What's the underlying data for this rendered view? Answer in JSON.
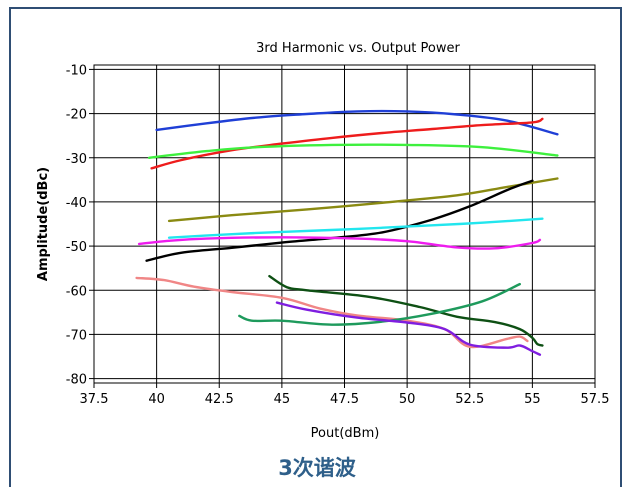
{
  "caption": "3次谐波",
  "chart_data": {
    "type": "line",
    "title": "3rd Harmonic  vs. Output Power",
    "xlabel": "Pout(dBm)",
    "ylabel": "Amplitude(dBc)",
    "xlim": [
      37.5,
      57.5
    ],
    "ylim": [
      -81,
      -9
    ],
    "xticks": [
      37.5,
      40,
      42.5,
      45,
      47.5,
      50,
      52.5,
      55,
      57.5
    ],
    "xtick_labels": [
      "37.5",
      "40",
      "42.5",
      "45",
      "47.5",
      "50",
      "52.5",
      "55",
      "57.5"
    ],
    "yticks": [
      -10,
      -20,
      -30,
      -40,
      -50,
      -60,
      -70,
      -80
    ],
    "ytick_labels": [
      "-10",
      "-20",
      "-30",
      "-40",
      "-50",
      "-60",
      "-70",
      "-80"
    ],
    "grid": true,
    "series": [
      {
        "color": "#1f3fd6",
        "points": [
          [
            40,
            -23.7
          ],
          [
            42,
            -22.2
          ],
          [
            44,
            -20.9
          ],
          [
            46,
            -20.1
          ],
          [
            48,
            -19.5
          ],
          [
            50,
            -19.5
          ],
          [
            52,
            -20.2
          ],
          [
            54,
            -21.6
          ],
          [
            56,
            -24.7
          ]
        ]
      },
      {
        "color": "#ee1c1c",
        "points": [
          [
            39.8,
            -32.4
          ],
          [
            41,
            -30.5
          ],
          [
            43,
            -28.3
          ],
          [
            45,
            -26.8
          ],
          [
            47,
            -25.5
          ],
          [
            49,
            -24.4
          ],
          [
            51,
            -23.5
          ],
          [
            53,
            -22.6
          ],
          [
            55,
            -22.0
          ],
          [
            55.4,
            -21.2
          ]
        ]
      },
      {
        "color": "#3ef03e",
        "points": [
          [
            39.7,
            -30.0
          ],
          [
            42,
            -28.5
          ],
          [
            44,
            -27.6
          ],
          [
            47,
            -27.1
          ],
          [
            50,
            -27.1
          ],
          [
            53,
            -27.6
          ],
          [
            56,
            -29.5
          ]
        ]
      },
      {
        "color": "#8a8a12",
        "points": [
          [
            40.5,
            -44.3
          ],
          [
            43,
            -43.0
          ],
          [
            46,
            -41.7
          ],
          [
            49,
            -40.2
          ],
          [
            52,
            -38.5
          ],
          [
            54,
            -36.6
          ],
          [
            56,
            -34.7
          ]
        ]
      },
      {
        "color": "#000000",
        "points": [
          [
            39.6,
            -53.3
          ],
          [
            41,
            -51.5
          ],
          [
            43,
            -50.4
          ],
          [
            45,
            -49.2
          ],
          [
            47,
            -48.2
          ],
          [
            49,
            -46.9
          ],
          [
            51,
            -44.0
          ],
          [
            52.5,
            -41.0
          ],
          [
            54,
            -37.3
          ],
          [
            55,
            -35.2
          ]
        ]
      },
      {
        "color": "#22e6ee",
        "points": [
          [
            40.5,
            -48.1
          ],
          [
            43,
            -47.3
          ],
          [
            45,
            -46.8
          ],
          [
            48,
            -46.1
          ],
          [
            51,
            -45.3
          ],
          [
            53,
            -44.7
          ],
          [
            55.4,
            -43.8
          ]
        ]
      },
      {
        "color": "#ee1cee",
        "points": [
          [
            39.3,
            -49.5
          ],
          [
            40.5,
            -48.8
          ],
          [
            42,
            -48.3
          ],
          [
            45,
            -48.0
          ],
          [
            48,
            -48.3
          ],
          [
            50,
            -48.9
          ],
          [
            52,
            -50.3
          ],
          [
            53.5,
            -50.5
          ],
          [
            55,
            -49.3
          ],
          [
            55.3,
            -48.6
          ]
        ]
      },
      {
        "color": "#f08686",
        "points": [
          [
            39.2,
            -57.2
          ],
          [
            40.3,
            -57.7
          ],
          [
            41.5,
            -59.2
          ],
          [
            43,
            -60.4
          ],
          [
            45,
            -61.7
          ],
          [
            46.5,
            -64.1
          ],
          [
            48,
            -65.7
          ],
          [
            50,
            -66.9
          ],
          [
            51.5,
            -68.8
          ],
          [
            52.5,
            -72.8
          ],
          [
            54,
            -71.0
          ],
          [
            54.5,
            -70.5
          ],
          [
            54.8,
            -71.5
          ]
        ]
      },
      {
        "color": "#0e5014",
        "points": [
          [
            44.5,
            -56.8
          ],
          [
            45.2,
            -59.3
          ],
          [
            46,
            -60.0
          ],
          [
            48.5,
            -61.5
          ],
          [
            50.5,
            -63.8
          ],
          [
            52,
            -66.0
          ],
          [
            53.5,
            -67.2
          ],
          [
            54.5,
            -68.8
          ],
          [
            55,
            -70.8
          ],
          [
            55.2,
            -72.2
          ],
          [
            55.4,
            -72.5
          ]
        ]
      },
      {
        "color": "#1e9a5c",
        "points": [
          [
            43.3,
            -65.8
          ],
          [
            43.8,
            -66.9
          ],
          [
            45,
            -66.9
          ],
          [
            47,
            -67.8
          ],
          [
            49,
            -67.1
          ],
          [
            51,
            -65.3
          ],
          [
            53,
            -62.5
          ],
          [
            54.5,
            -58.6
          ]
        ]
      },
      {
        "color": "#7f1ee0",
        "points": [
          [
            44.8,
            -62.8
          ],
          [
            46,
            -64.4
          ],
          [
            48,
            -66.2
          ],
          [
            50,
            -67.3
          ],
          [
            51.5,
            -68.8
          ],
          [
            52.5,
            -72.3
          ],
          [
            54,
            -73.0
          ],
          [
            54.5,
            -72.5
          ],
          [
            55,
            -73.8
          ],
          [
            55.3,
            -74.6
          ]
        ]
      }
    ]
  }
}
